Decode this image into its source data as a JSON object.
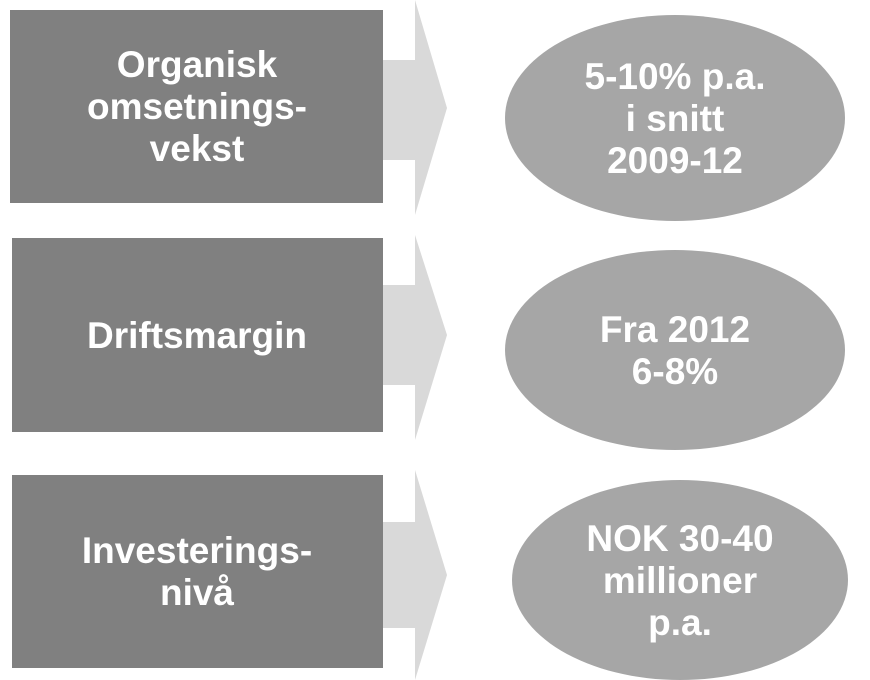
{
  "rows": [
    {
      "label": [
        "Organisk",
        "omsetnings-",
        "vekst"
      ],
      "target": [
        "5-10% p.a.",
        "i snitt",
        "2009-12"
      ]
    },
    {
      "label": [
        "Driftsmargin"
      ],
      "target": [
        "Fra 2012",
        "6-8%"
      ]
    },
    {
      "label": [
        "Investerings-",
        "nivå"
      ],
      "target": [
        "NOK 30-40",
        "millioner",
        "p.a."
      ]
    }
  ]
}
